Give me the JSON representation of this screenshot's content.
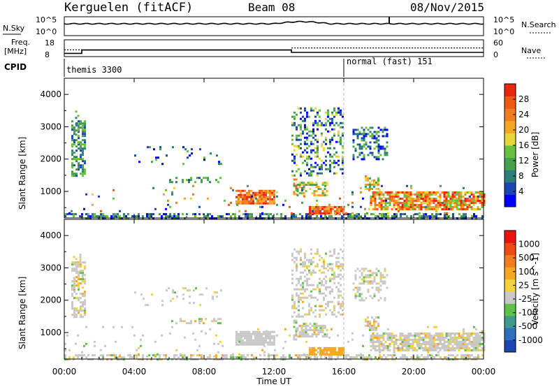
{
  "header": {
    "station": "Kerguelen (fitACF)",
    "beam": "Beam 08",
    "date": "08/Nov/2015"
  },
  "noise_panel": {
    "left_label": "N.Sky",
    "right_label": "N.Search",
    "ytick_top": "10^5",
    "ytick_bottom": "10^0"
  },
  "freq_panel": {
    "left_label_top": "Freq.",
    "left_label_bottom": "[MHz]",
    "ytick_top": "18",
    "ytick_bottom": "8",
    "right_tick_top": "60",
    "right_tick_bottom": "0",
    "right_label": "Nave",
    "series": [
      {
        "name": "Freq.",
        "x": [
          "00:00",
          "01:00",
          "01:00",
          "13:00",
          "13:00",
          "24:00"
        ],
        "y": [
          9.9,
          9.9,
          11.9,
          11.9,
          10.5,
          10.5
        ]
      },
      {
        "name": "Nave",
        "x": [
          "00:00",
          "13:00",
          "13:00",
          "24:00"
        ],
        "y": [
          24,
          24,
          31,
          31
        ]
      }
    ]
  },
  "cpid_panel": {
    "label": "CPID",
    "segments": [
      {
        "start": "00:00",
        "end": "16:00",
        "text": "themis 3300"
      },
      {
        "start": "16:00",
        "end": "24:00",
        "text": "normal (fast) 151"
      }
    ]
  },
  "x_axis": {
    "label": "Time UT",
    "ticks": [
      "00:00",
      "04:00",
      "08:00",
      "12:00",
      "16:00",
      "20:00",
      "00:00"
    ]
  },
  "power_panel": {
    "ylabel": "Slant Range [km]",
    "yticks": [
      "4000",
      "3000",
      "2000",
      "1000"
    ],
    "colorbar_label": "Power [dB]",
    "colorbar_ticks": [
      "28",
      "24",
      "20",
      "16",
      "12",
      "8",
      "4"
    ],
    "colors": [
      "#0000ff",
      "#1c46b4",
      "#2e7d7d",
      "#44a04c",
      "#66c23e",
      "#e6d53c",
      "#f5a623",
      "#f07d1e",
      "#ee5a14",
      "#e8260e"
    ]
  },
  "velocity_panel": {
    "ylabel": "Slant Range [km]",
    "yticks": [
      "4000",
      "3000",
      "2000",
      "1000"
    ],
    "colorbar_label": "Velocity [m s^-1]",
    "colorbar_ticks": [
      "1000",
      "500",
      "100",
      "25",
      "-25",
      "-100",
      "-500",
      "-1000"
    ],
    "colors": [
      "#1c46b4",
      "#2e6fbd",
      "#3d9a8c",
      "#5ec24a",
      "#c8c8c8",
      "#f0d23c",
      "#f5a623",
      "#f07d1e",
      "#ee4a14",
      "#e8140e"
    ]
  },
  "chart_data": {
    "type": "heatmap",
    "x_range": [
      "00:00",
      "24:00"
    ],
    "y_range": [
      180,
      4500
    ],
    "series": [
      {
        "name": "Power [dB]",
        "cmap_range": [
          0,
          32
        ]
      },
      {
        "name": "Velocity [m s^-1]",
        "cmap_range": [
          -1000,
          1000
        ]
      }
    ]
  }
}
